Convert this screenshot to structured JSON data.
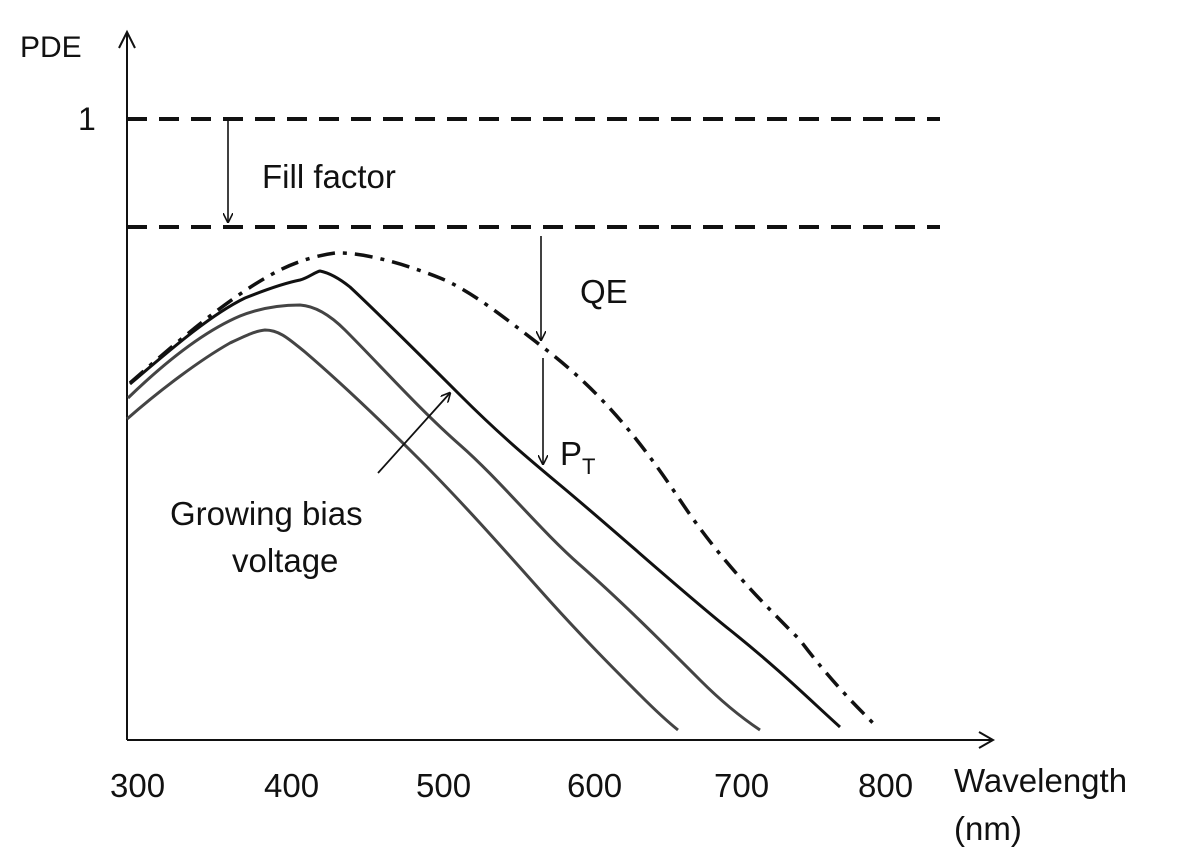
{
  "y_axis": {
    "label": "PDE",
    "one_tick": "1"
  },
  "x_axis": {
    "label_line1": "Wavelength",
    "label_line2": "(nm)",
    "ticks": [
      "300",
      "400",
      "500",
      "600",
      "700",
      "800"
    ]
  },
  "annotations": {
    "fill_factor": "Fill factor",
    "qe": "QE",
    "pt_main": "P",
    "pt_sub": "T",
    "bias_line1": "Growing bias",
    "bias_line2": "voltage"
  },
  "colors": {
    "ink": "#111111",
    "grey_curve": "#444444"
  }
}
